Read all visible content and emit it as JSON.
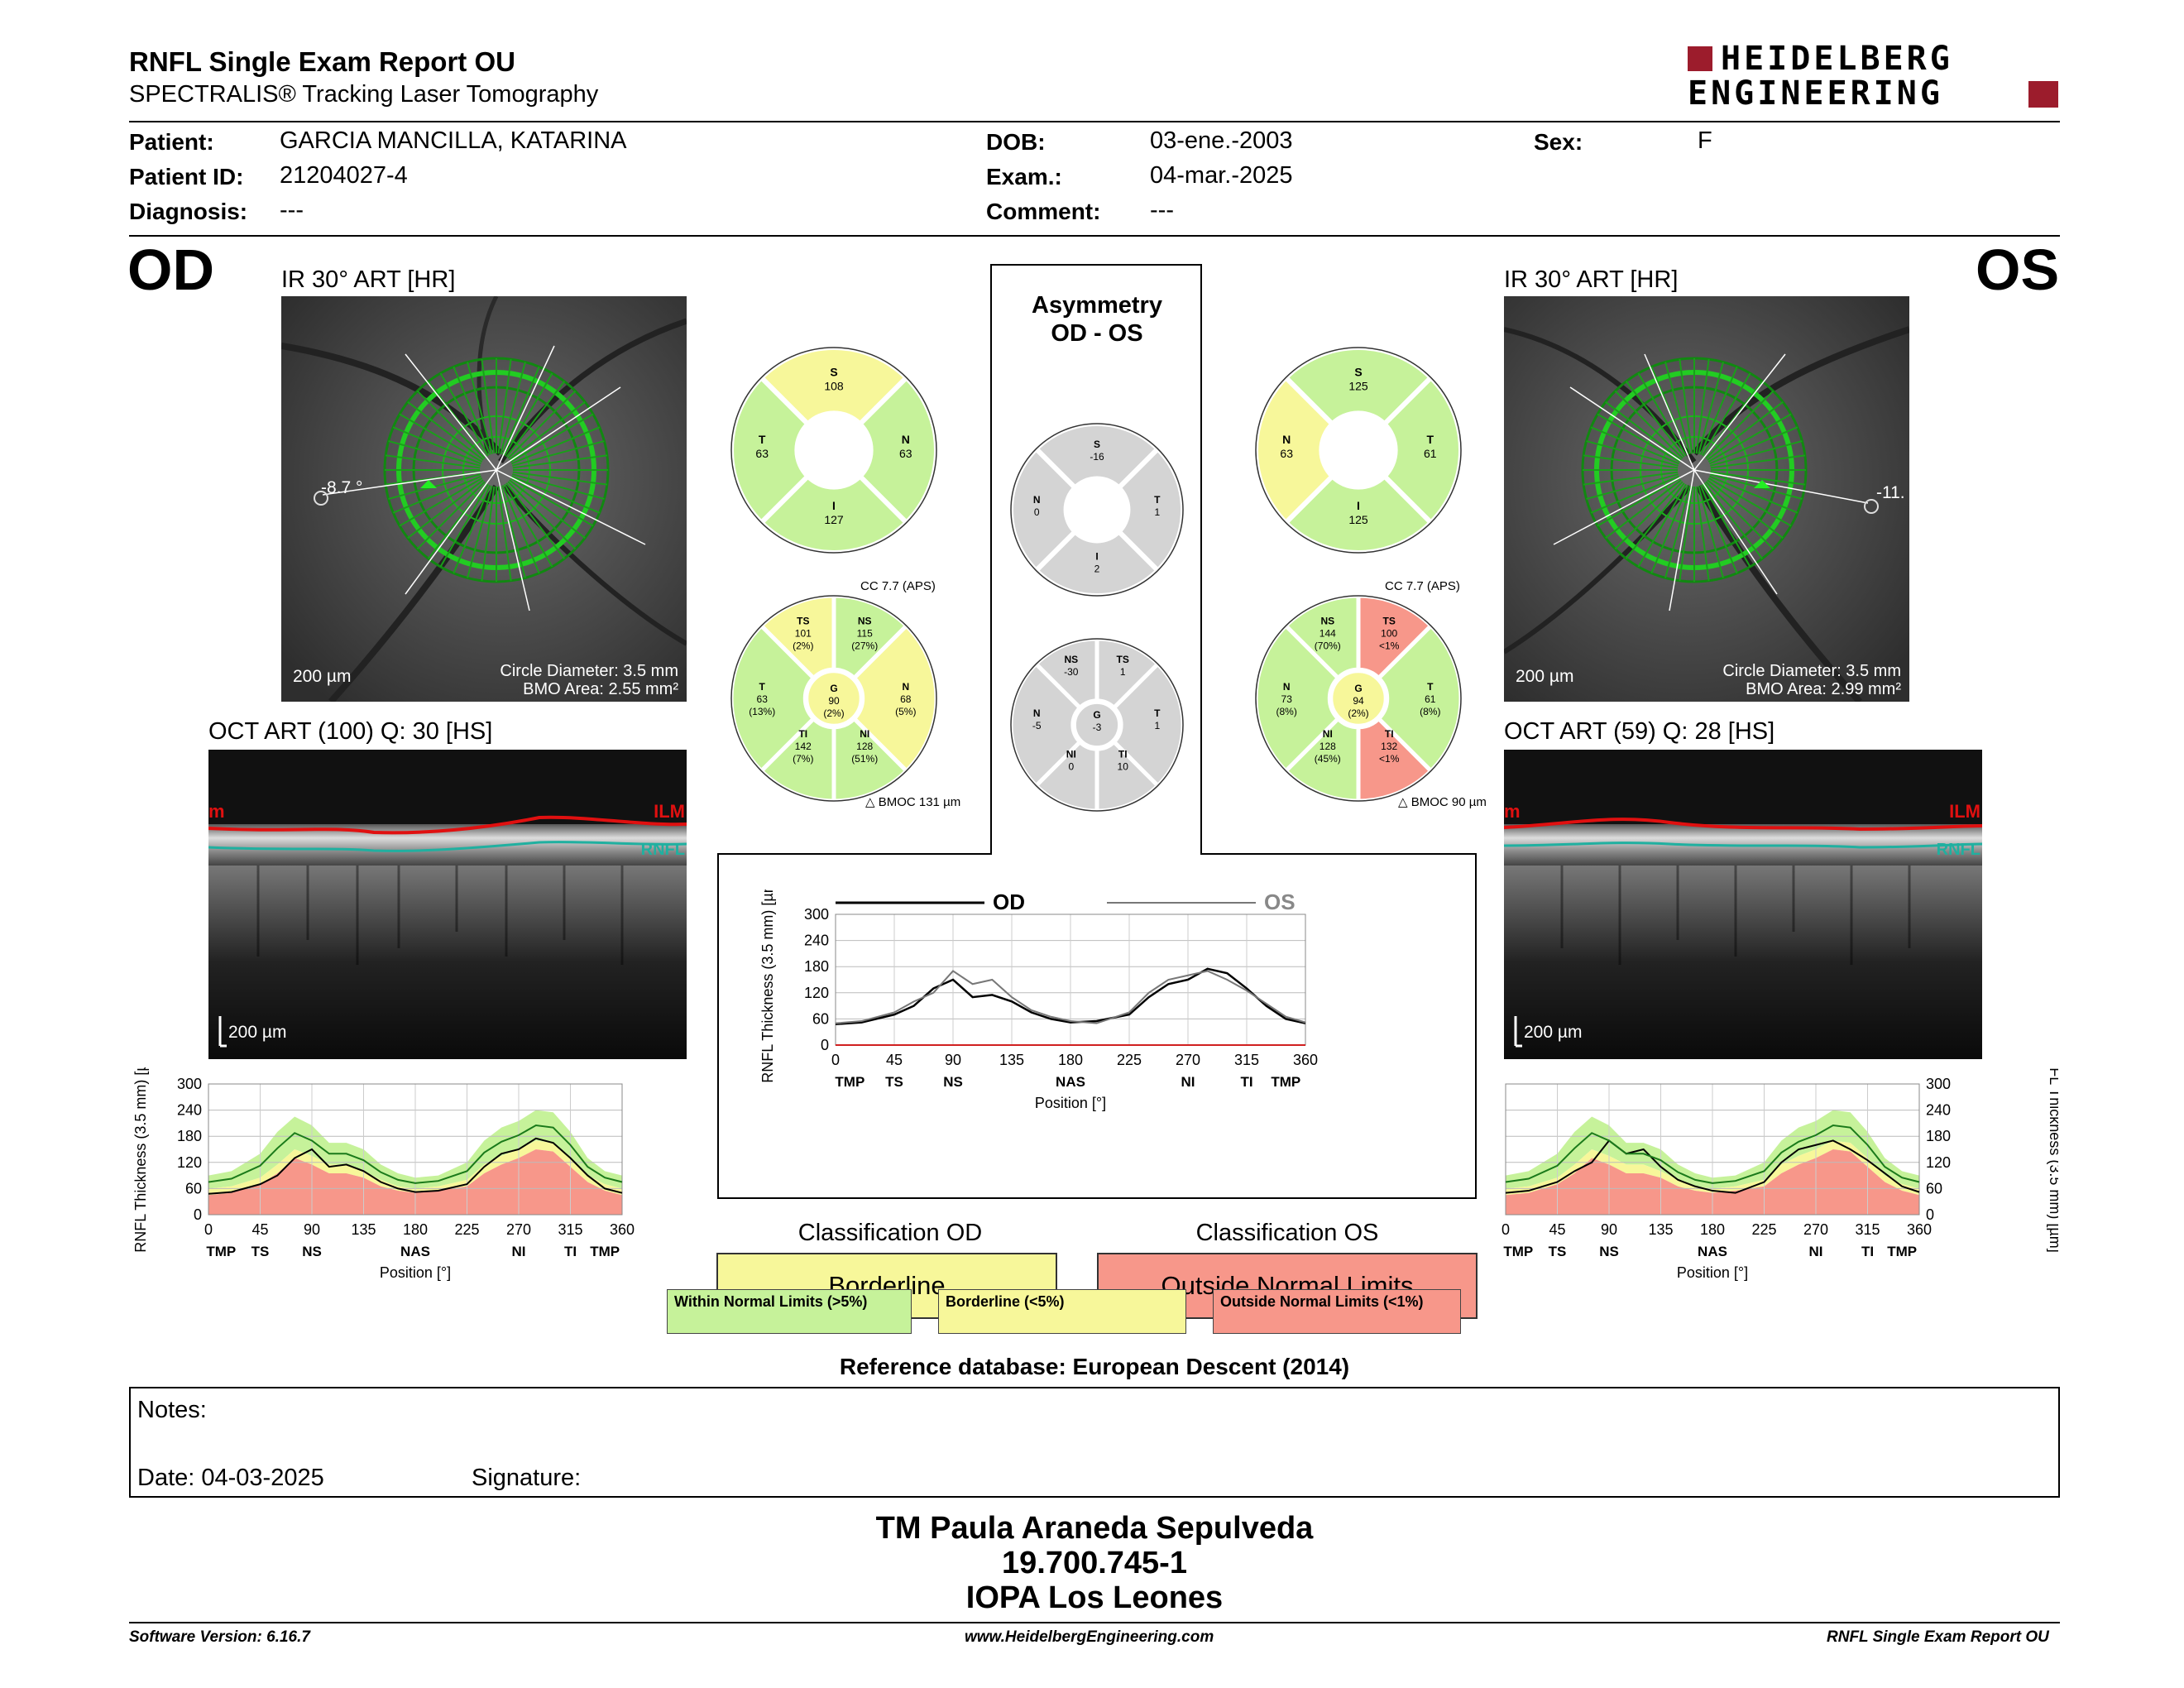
{
  "header": {
    "title": "RNFL Single Exam Report OU",
    "subtitle": "SPECTRALIS® Tracking Laser Tomography",
    "logo_line1": "HEIDELBERG",
    "logo_line2": "ENGINEERING"
  },
  "patient": {
    "patient_label": "Patient:",
    "patient_value": "GARCIA MANCILLA, KATARINA",
    "id_label": "Patient ID:",
    "id_value": "21204027-4",
    "diagnosis_label": "Diagnosis:",
    "diagnosis_value": "---",
    "dob_label": "DOB:",
    "dob_value": "03-ene.-2003",
    "exam_label": "Exam.:",
    "exam_value": "04-mar.-2025",
    "comment_label": "Comment:",
    "comment_value": "---",
    "sex_label": "Sex:",
    "sex_value": "F"
  },
  "od": {
    "eye": "OD",
    "ir_caption": "IR 30° ART [HR]",
    "angle": "-8.7 °",
    "scale": "200 µm",
    "circle_diameter": "Circle Diameter: 3.5 mm",
    "bmo_area": "BMO Area: 2.55 mm²",
    "oct_caption": "OCT ART (100) Q: 30 [HS]",
    "oct_scale": "200 µm",
    "ilm_label": "ILM",
    "rnfl_label": "RNFL",
    "edge_label": "m",
    "sectors4": {
      "S": "108",
      "T": "63",
      "N": "63",
      "I": "127"
    },
    "cc_label": "CC 7.7 (APS)",
    "bmoc": "BMOC 131 µm",
    "sectors6": {
      "TS": [
        "101",
        "(2%)"
      ],
      "NS": [
        "115",
        "(27%)"
      ],
      "T": [
        "63",
        "(13%)"
      ],
      "G": [
        "90",
        "(2%)"
      ],
      "N": [
        "68",
        "(5%)"
      ],
      "TI": [
        "142",
        "(7%)"
      ],
      "NI": [
        "128",
        "(51%)"
      ]
    }
  },
  "os": {
    "eye": "OS",
    "ir_caption": "IR 30° ART [HR]",
    "angle": "-11.",
    "scale": "200 µm",
    "circle_diameter": "Circle Diameter: 3.5 mm",
    "bmo_area": "BMO Area: 2.99 mm²",
    "oct_caption": "OCT ART (59) Q: 28 [HS]",
    "oct_scale": "200 µm",
    "ilm_label": "ILM",
    "rnfl_label": "RNFL",
    "edge_label": "m",
    "sectors4": {
      "S": "125",
      "N": "63",
      "T": "61",
      "I": "125"
    },
    "cc_label": "CC 7.7 (APS)",
    "bmoc": "BMOC 90 µm",
    "sectors6": {
      "NS": [
        "144",
        "(70%)"
      ],
      "TS": [
        "100",
        "<1%"
      ],
      "N": [
        "73",
        "(8%)"
      ],
      "G": [
        "94",
        "(2%)"
      ],
      "T": [
        "61",
        "(8%)"
      ],
      "NI": [
        "128",
        "(45%)"
      ],
      "TI": [
        "132",
        "<1%"
      ]
    }
  },
  "asymmetry": {
    "title1": "Asymmetry",
    "title2": "OD - OS",
    "sectors4": {
      "S": "-16",
      "N": "0",
      "T": "1",
      "I": "2"
    },
    "sectors6": {
      "NS": "-30",
      "TS": "1",
      "N": "-5",
      "G": "-3",
      "T": "1",
      "NI": "0",
      "TI": "10"
    }
  },
  "sector_letters": {
    "S": "S",
    "T": "T",
    "N": "N",
    "I": "I",
    "G": "G",
    "TS": "TS",
    "NS": "NS",
    "TI": "TI",
    "NI": "NI"
  },
  "chart_data": [
    {
      "type": "line",
      "name": "od_profile",
      "xlabel": "Position [°]",
      "ylabel": "RNFL Thickness (3.5 mm) [µm]",
      "xlim": [
        0,
        360
      ],
      "ylim": [
        0,
        300
      ],
      "xticks": [
        "0",
        "45",
        "90",
        "135",
        "180",
        "225",
        "270",
        "315",
        "360"
      ],
      "yticks": [
        "0",
        "60",
        "120",
        "180",
        "240",
        "300"
      ],
      "sector_ticks": [
        "TMP",
        "TS",
        "NS",
        "NAS",
        "NI",
        "TI",
        "TMP"
      ],
      "x": [
        0,
        20,
        45,
        60,
        75,
        90,
        105,
        120,
        135,
        150,
        165,
        180,
        200,
        225,
        240,
        255,
        270,
        285,
        300,
        315,
        330,
        345,
        360
      ],
      "series": [
        {
          "values": [
            48,
            52,
            70,
            90,
            130,
            150,
            110,
            115,
            100,
            75,
            60,
            52,
            55,
            70,
            110,
            140,
            150,
            175,
            165,
            130,
            90,
            60,
            50
          ]
        }
      ],
      "bands": {
        "upper": [
          90,
          100,
          140,
          190,
          225,
          205,
          165,
          165,
          150,
          115,
          95,
          85,
          90,
          120,
          170,
          200,
          215,
          240,
          235,
          190,
          130,
          100,
          90
        ],
        "normal_low": [
          60,
          65,
          85,
          115,
          150,
          135,
          115,
          115,
          100,
          80,
          65,
          60,
          65,
          80,
          115,
          135,
          150,
          170,
          165,
          130,
          90,
          70,
          60
        ],
        "borderline_low": [
          45,
          50,
          70,
          95,
          130,
          115,
          95,
          95,
          85,
          65,
          55,
          50,
          55,
          65,
          95,
          115,
          130,
          150,
          145,
          110,
          75,
          55,
          45
        ]
      }
    },
    {
      "type": "line",
      "name": "asymmetry_profile",
      "xlabel": "Position [°]",
      "ylabel": "RNFL Thickness (3.5 mm) [µm]",
      "xlim": [
        0,
        360
      ],
      "ylim": [
        0,
        300
      ],
      "xticks": [
        "0",
        "45",
        "90",
        "135",
        "180",
        "225",
        "270",
        "315",
        "360"
      ],
      "yticks": [
        "0",
        "60",
        "120",
        "180",
        "240",
        "300"
      ],
      "sector_ticks": [
        "TMP",
        "TS",
        "NS",
        "NAS",
        "NI",
        "TI",
        "TMP"
      ],
      "legend": [
        "OD",
        "OS"
      ],
      "x": [
        0,
        20,
        45,
        60,
        75,
        90,
        105,
        120,
        135,
        150,
        165,
        180,
        200,
        225,
        240,
        255,
        270,
        285,
        300,
        315,
        330,
        345,
        360
      ],
      "series": [
        {
          "name": "OD",
          "values": [
            48,
            52,
            70,
            90,
            130,
            150,
            110,
            115,
            100,
            75,
            60,
            52,
            55,
            70,
            110,
            140,
            150,
            175,
            165,
            130,
            90,
            60,
            50
          ]
        },
        {
          "name": "OS",
          "values": [
            50,
            55,
            75,
            100,
            120,
            170,
            140,
            150,
            110,
            80,
            65,
            55,
            50,
            75,
            120,
            150,
            160,
            170,
            150,
            125,
            95,
            65,
            52
          ]
        }
      ]
    },
    {
      "type": "line",
      "name": "os_profile",
      "xlabel": "Position [°]",
      "ylabel": "RNFL Thickness (3.5 mm) [µm]",
      "xlim": [
        0,
        360
      ],
      "ylim": [
        0,
        300
      ],
      "xticks": [
        "0",
        "45",
        "90",
        "135",
        "180",
        "225",
        "270",
        "315",
        "360"
      ],
      "yticks": [
        "0",
        "60",
        "120",
        "180",
        "240",
        "300"
      ],
      "sector_ticks": [
        "TMP",
        "TS",
        "NS",
        "NAS",
        "NI",
        "TI",
        "TMP"
      ],
      "x": [
        0,
        20,
        45,
        60,
        75,
        90,
        105,
        120,
        135,
        150,
        165,
        180,
        200,
        225,
        240,
        255,
        270,
        285,
        300,
        315,
        330,
        345,
        360
      ],
      "series": [
        {
          "values": [
            50,
            55,
            75,
            100,
            120,
            170,
            140,
            150,
            110,
            80,
            65,
            55,
            50,
            75,
            120,
            150,
            160,
            170,
            150,
            125,
            95,
            65,
            52
          ]
        }
      ],
      "bands": {
        "upper": [
          90,
          100,
          140,
          190,
          225,
          205,
          165,
          165,
          150,
          115,
          95,
          85,
          90,
          120,
          170,
          200,
          215,
          240,
          235,
          190,
          130,
          100,
          90
        ],
        "normal_low": [
          60,
          65,
          85,
          115,
          150,
          135,
          115,
          115,
          100,
          80,
          65,
          60,
          65,
          80,
          115,
          135,
          150,
          170,
          165,
          130,
          90,
          70,
          60
        ],
        "borderline_low": [
          45,
          50,
          70,
          95,
          130,
          115,
          95,
          95,
          85,
          65,
          55,
          50,
          55,
          65,
          95,
          115,
          130,
          150,
          145,
          110,
          75,
          55,
          45
        ]
      }
    }
  ],
  "classification": {
    "od_title": "Classification OD",
    "od_value": "Borderline",
    "os_title": "Classification OS",
    "os_value": "Outside Normal Limits",
    "legend_within": "Within Normal Limits (>5%)",
    "legend_borderline": "Borderline (<5%)",
    "legend_outside": "Outside Normal Limits (<1%)",
    "reference": "Reference database: European Descent (2014)"
  },
  "notes": {
    "notes_label": "Notes:",
    "date_label": "Date: 04-03-2025",
    "signature_label": "Signature:"
  },
  "footer_block": {
    "line1": "TM Paula Araneda Sepulveda",
    "line2": "19.700.745-1",
    "line3": "IOPA Los Leones"
  },
  "footer": {
    "software": "Software Version: 6.16.7",
    "website": "www.HeidelbergEngineering.com",
    "report": "RNFL Single Exam Report OU"
  },
  "colors": {
    "green": "#c6f29a",
    "yellow": "#f7f79a",
    "red": "#f7978a",
    "gray": "#d4d4d4",
    "logo_red": "#9c1c2c"
  }
}
